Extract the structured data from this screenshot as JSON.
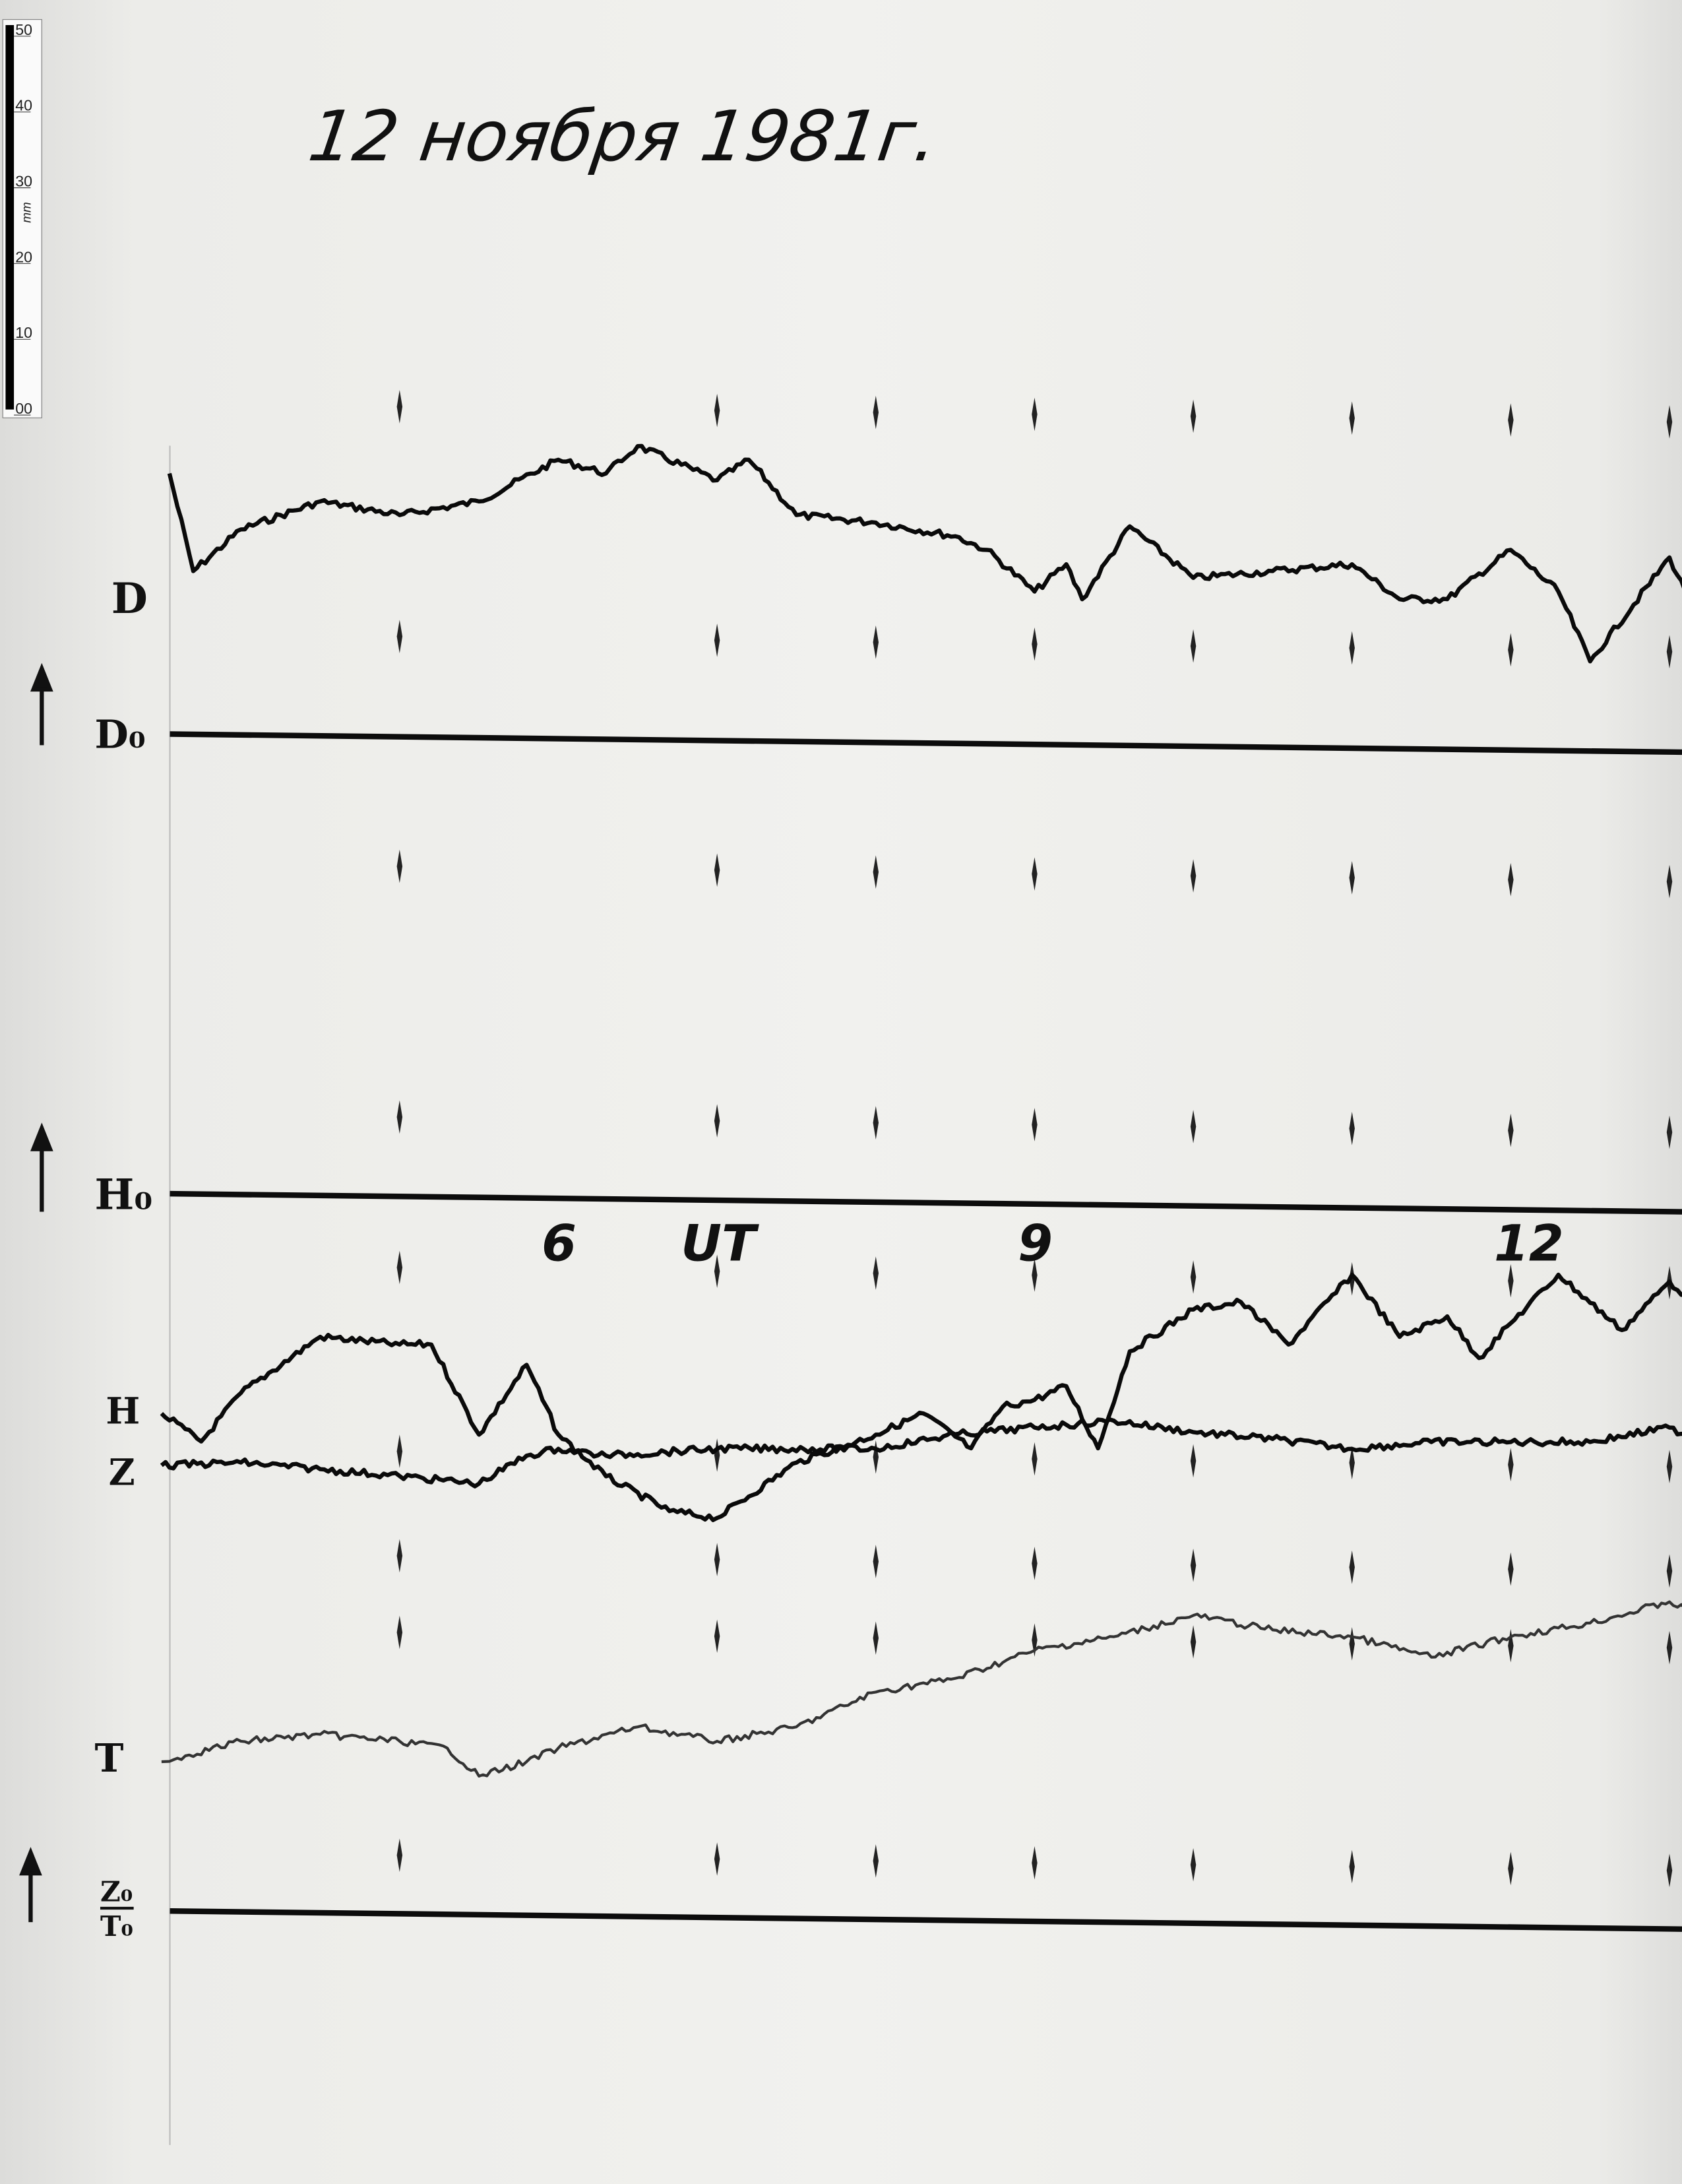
{
  "title": "12 ноября 1981г.",
  "ruler": {
    "ticks": [
      "50",
      "40",
      "30",
      "20",
      "10",
      "00"
    ],
    "unit": "mm"
  },
  "labels": {
    "D": "D",
    "D0": "D₀",
    "H0": "H₀",
    "H": "H",
    "Z": "Z",
    "T": "T",
    "Z0": "Z₀",
    "T0": "T₀"
  },
  "hour_labels": [
    {
      "text": "6",
      "hour": 6
    },
    {
      "text": "UT",
      "hour": 7
    },
    {
      "text": "9",
      "hour": 9
    },
    {
      "text": "12",
      "hour": 12
    }
  ],
  "chart_data": {
    "type": "line",
    "title": "12 ноября 1981г.",
    "xlabel": "UT",
    "ylabel": "",
    "x_tick_labels": [
      "6",
      "9",
      "12"
    ],
    "xlim": [
      3.5,
      13.1
    ],
    "hour_marks": [
      5,
      7,
      8,
      9,
      10,
      11,
      12,
      13
    ],
    "y_units": "mm",
    "series": [
      {
        "name": "D",
        "baseline": "D₀",
        "points": [
          [
            3.55,
            34.4
          ],
          [
            3.7,
            21.5
          ],
          [
            4,
            27.0
          ],
          [
            4.5,
            30.7
          ],
          [
            5,
            28.9
          ],
          [
            5.5,
            30.7
          ],
          [
            6,
            36.2
          ],
          [
            6.3,
            34.4
          ],
          [
            6.5,
            38.0
          ],
          [
            7,
            33.5
          ],
          [
            7.2,
            36.2
          ],
          [
            7.5,
            28.9
          ],
          [
            8,
            27.9
          ],
          [
            8.5,
            26.1
          ],
          [
            8.7,
            24.3
          ],
          [
            9,
            18.8
          ],
          [
            9.2,
            22.4
          ],
          [
            9.3,
            17.8
          ],
          [
            9.6,
            27.4
          ],
          [
            10,
            20.6
          ],
          [
            10.5,
            21.5
          ],
          [
            11,
            22.4
          ],
          [
            11.3,
            17.8
          ],
          [
            11.6,
            17.8
          ],
          [
            12,
            24.3
          ],
          [
            12.3,
            18.8
          ],
          [
            12.5,
            9.6
          ],
          [
            13,
            23.3
          ],
          [
            13.1,
            18.8
          ]
        ]
      },
      {
        "name": "H",
        "baseline": "H₀",
        "points": [
          [
            3.5,
            -29.0
          ],
          [
            3.75,
            -32.7
          ],
          [
            4,
            -26.3
          ],
          [
            4.5,
            -18.9
          ],
          [
            5,
            -19.9
          ],
          [
            5.2,
            -19.9
          ],
          [
            5.5,
            -31.8
          ],
          [
            5.8,
            -22.6
          ],
          [
            6,
            -31.8
          ],
          [
            6.3,
            -37.3
          ],
          [
            6.7,
            -41.9
          ],
          [
            7,
            -42.8
          ],
          [
            7.5,
            -35.5
          ],
          [
            8,
            -31.8
          ],
          [
            8.3,
            -29.0
          ],
          [
            8.6,
            -33.6
          ],
          [
            8.8,
            -28.1
          ],
          [
            9,
            -27.2
          ],
          [
            9.2,
            -25.4
          ],
          [
            9.4,
            -33.6
          ],
          [
            9.6,
            -20.8
          ],
          [
            10,
            -15.3
          ],
          [
            10.3,
            -14.3
          ],
          [
            10.6,
            -19.9
          ],
          [
            11,
            -10.7
          ],
          [
            11.3,
            -18.9
          ],
          [
            11.6,
            -16.2
          ],
          [
            11.8,
            -21.7
          ],
          [
            12,
            -17.1
          ],
          [
            12.3,
            -10.7
          ],
          [
            12.7,
            -18.0
          ],
          [
            13,
            -11.6
          ],
          [
            13.1,
            -13.4
          ]
        ]
      },
      {
        "name": "Z",
        "baseline": "Z₀",
        "points": [
          [
            3.5,
            58.8
          ],
          [
            4,
            59.2
          ],
          [
            4.5,
            58.3
          ],
          [
            5,
            57.4
          ],
          [
            5.5,
            56.4
          ],
          [
            5.8,
            60.1
          ],
          [
            6,
            61.0
          ],
          [
            6.3,
            60.1
          ],
          [
            7,
            61.0
          ],
          [
            8,
            61.0
          ],
          [
            8.5,
            62.9
          ],
          [
            9,
            63.8
          ],
          [
            9.5,
            64.7
          ],
          [
            10,
            63.2
          ],
          [
            10.5,
            62.3
          ],
          [
            11,
            61.0
          ],
          [
            11.5,
            61.9
          ],
          [
            12,
            61.9
          ],
          [
            12.5,
            61.9
          ],
          [
            13,
            63.8
          ],
          [
            13.1,
            62.9
          ]
        ]
      },
      {
        "name": "T",
        "baseline": "T₀",
        "points": [
          [
            3.5,
            19.7
          ],
          [
            4,
            22.4
          ],
          [
            4.5,
            23.3
          ],
          [
            5,
            22.4
          ],
          [
            5.3,
            21.5
          ],
          [
            5.5,
            17.8
          ],
          [
            5.8,
            19.7
          ],
          [
            6,
            21.5
          ],
          [
            6.5,
            24.3
          ],
          [
            7,
            22.4
          ],
          [
            7.5,
            24.3
          ],
          [
            8,
            28.9
          ],
          [
            8.5,
            30.7
          ],
          [
            9,
            34.4
          ],
          [
            9.5,
            36.2
          ],
          [
            10,
            39.0
          ],
          [
            10.5,
            37.1
          ],
          [
            11,
            36.2
          ],
          [
            11.5,
            33.5
          ],
          [
            12,
            36.2
          ],
          [
            12.5,
            38.0
          ],
          [
            13,
            40.8
          ],
          [
            13.1,
            39.9
          ]
        ]
      }
    ]
  }
}
